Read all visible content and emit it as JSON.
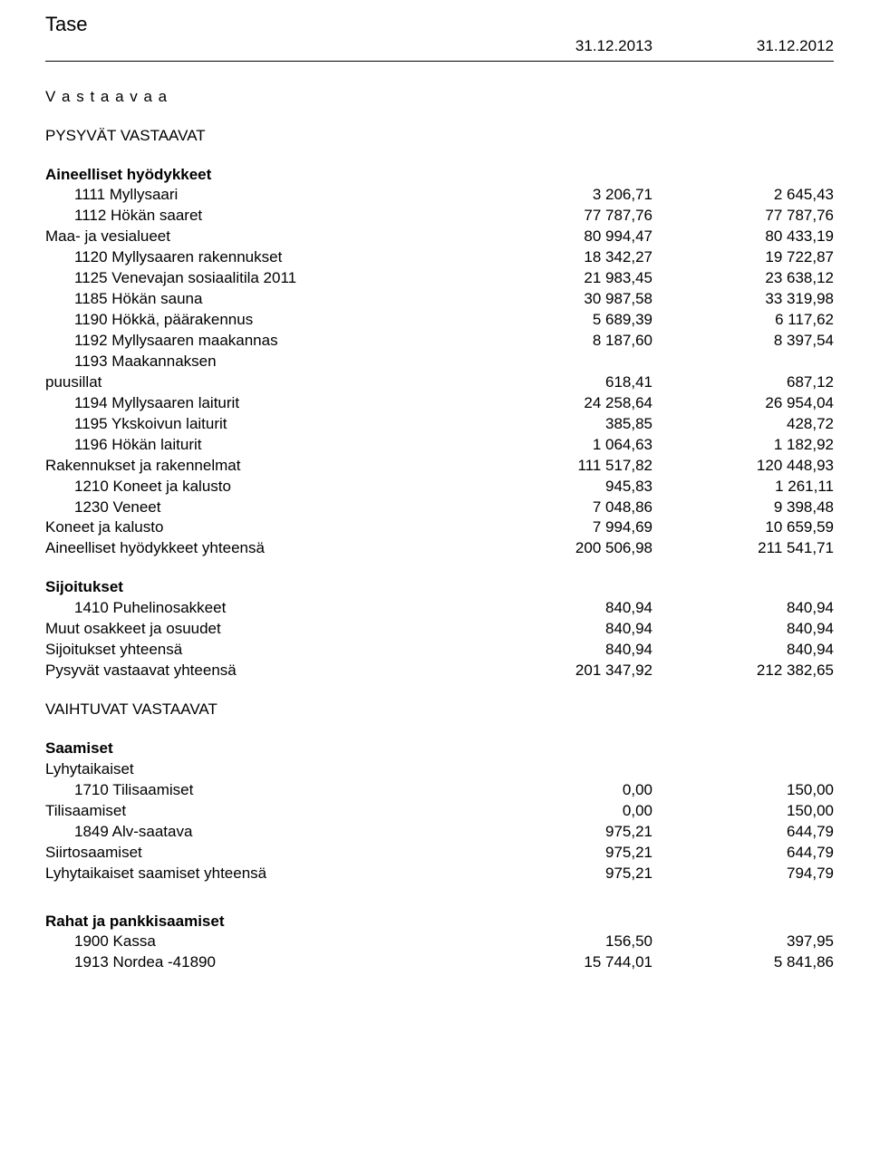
{
  "doc": {
    "title": "Tase",
    "date1": "31.12.2013",
    "date2": "31.12.2012"
  },
  "s1": {
    "heading": "V a s t a a v a a",
    "sub": "PYSYVÄT VASTAAVAT",
    "group1": "Aineelliset hyödykkeet",
    "r1": {
      "l": "1111 Myllysaari",
      "a": "3 206,71",
      "b": "2 645,43"
    },
    "r2": {
      "l": "1112 Hökän saaret",
      "a": "77 787,76",
      "b": "77 787,76"
    },
    "r3": {
      "l": "Maa- ja vesialueet",
      "a": "80 994,47",
      "b": "80 433,19"
    },
    "r4": {
      "l": "1120 Myllysaaren rakennukset",
      "a": "18 342,27",
      "b": "19 722,87"
    },
    "r5": {
      "l": "1125 Venevajan sosiaalitila 2011",
      "a": "21 983,45",
      "b": "23 638,12"
    },
    "r6": {
      "l": "1185 Hökän sauna",
      "a": "30 987,58",
      "b": "33 319,98"
    },
    "r7": {
      "l": "1190 Hökkä, päärakennus",
      "a": "5 689,39",
      "b": "6 117,62"
    },
    "r8": {
      "l": "1192 Myllysaaren maakannas",
      "a": "8 187,60",
      "b": "8 397,54"
    },
    "r9a": {
      "l": "1193 Maakannaksen"
    },
    "r9b": {
      "l": "puusillat",
      "a": "618,41",
      "b": "687,12"
    },
    "r10": {
      "l": "1194 Myllysaaren laiturit",
      "a": "24 258,64",
      "b": "26 954,04"
    },
    "r11": {
      "l": "1195 Ykskoivun laiturit",
      "a": "385,85",
      "b": "428,72"
    },
    "r12": {
      "l": "1196 Hökän laiturit",
      "a": "1 064,63",
      "b": "1 182,92"
    },
    "r13": {
      "l": "Rakennukset ja rakennelmat",
      "a": "111 517,82",
      "b": "120 448,93"
    },
    "r14": {
      "l": "1210 Koneet ja kalusto",
      "a": "945,83",
      "b": "1 261,11"
    },
    "r15": {
      "l": "1230 Veneet",
      "a": "7 048,86",
      "b": "9 398,48"
    },
    "r16": {
      "l": "Koneet ja kalusto",
      "a": "7 994,69",
      "b": "10 659,59"
    },
    "r17": {
      "l": "Aineelliset hyödykkeet yhteensä",
      "a": "200 506,98",
      "b": "211 541,71"
    }
  },
  "s2": {
    "group": "Sijoitukset",
    "r1": {
      "l": "1410 Puhelinosakkeet",
      "a": "840,94",
      "b": "840,94"
    },
    "r2": {
      "l": "Muut osakkeet ja osuudet",
      "a": "840,94",
      "b": "840,94"
    },
    "r3": {
      "l": "Sijoitukset yhteensä",
      "a": "840,94",
      "b": "840,94"
    },
    "r4": {
      "l": "Pysyvät vastaavat yhteensä",
      "a": "201 347,92",
      "b": "212 382,65"
    }
  },
  "s3": {
    "heading": "VAIHTUVAT VASTAAVAT",
    "group": "Saamiset",
    "sub": "Lyhytaikaiset",
    "r1": {
      "l": "1710 Tilisaamiset",
      "a": "0,00",
      "b": "150,00"
    },
    "r2": {
      "l": "Tilisaamiset",
      "a": "0,00",
      "b": "150,00"
    },
    "r3": {
      "l": "1849 Alv-saatava",
      "a": "975,21",
      "b": "644,79"
    },
    "r4": {
      "l": "Siirtosaamiset",
      "a": "975,21",
      "b": "644,79"
    },
    "r5": {
      "l": "Lyhytaikaiset saamiset yhteensä",
      "a": "975,21",
      "b": "794,79"
    }
  },
  "s4": {
    "group": "Rahat ja pankkisaamiset",
    "r1": {
      "l": "1900 Kassa",
      "a": "156,50",
      "b": "397,95"
    },
    "r2": {
      "l": "1913 Nordea -41890",
      "a": "15 744,01",
      "b": "5 841,86"
    }
  }
}
